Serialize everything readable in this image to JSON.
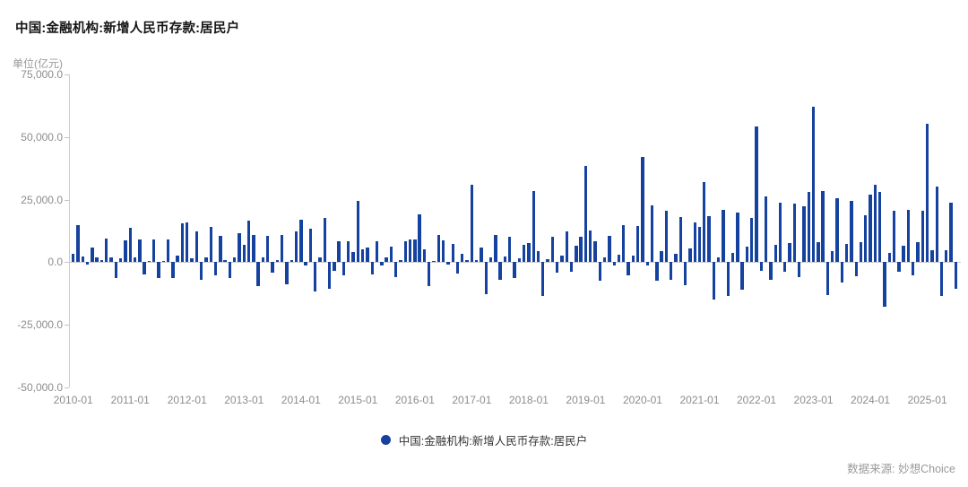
{
  "header": {
    "title": "中国:金融机构:新增人民币存款:居民户",
    "unit_label": "单位(亿元)"
  },
  "legend": {
    "label": "中国:金融机构:新增人民币存款:居民户"
  },
  "footer": {
    "source_label": "数据来源: 妙想Choice"
  },
  "chart_data": {
    "type": "bar",
    "title": "中国:金融机构:新增人民币存款:居民户",
    "unit": "亿元",
    "bar_color": "#16429f",
    "grid": false,
    "legend_position": "bottom",
    "ylim": [
      -50000,
      75000
    ],
    "y_tick_values": [
      75000,
      50000,
      25000,
      0,
      -25000,
      -50000
    ],
    "y_tick_labels": [
      "75,000.0",
      "50,000.0",
      "25,000.0",
      "0.0",
      "-25,000.0",
      "-50,000.0"
    ],
    "x_tick_labels": [
      "2010-01",
      "2011-01",
      "2012-01",
      "2013-01",
      "2014-01",
      "2015-01",
      "2016-01",
      "2017-01",
      "2018-01",
      "2019-01",
      "2020-01",
      "2021-01",
      "2022-01",
      "2023-01",
      "2024-01",
      "2025-01"
    ],
    "months": [
      "2010-01",
      "2010-02",
      "2010-03",
      "2010-04",
      "2010-05",
      "2010-06",
      "2010-07",
      "2010-08",
      "2010-09",
      "2010-10",
      "2010-11",
      "2010-12",
      "2011-01",
      "2011-02",
      "2011-03",
      "2011-04",
      "2011-05",
      "2011-06",
      "2011-07",
      "2011-08",
      "2011-09",
      "2011-10",
      "2011-11",
      "2011-12",
      "2012-01",
      "2012-02",
      "2012-03",
      "2012-04",
      "2012-05",
      "2012-06",
      "2012-07",
      "2012-08",
      "2012-09",
      "2012-10",
      "2012-11",
      "2012-12",
      "2013-01",
      "2013-02",
      "2013-03",
      "2013-04",
      "2013-05",
      "2013-06",
      "2013-07",
      "2013-08",
      "2013-09",
      "2013-10",
      "2013-11",
      "2013-12",
      "2014-01",
      "2014-02",
      "2014-03",
      "2014-04",
      "2014-05",
      "2014-06",
      "2014-07",
      "2014-08",
      "2014-09",
      "2014-10",
      "2014-11",
      "2014-12",
      "2015-01",
      "2015-02",
      "2015-03",
      "2015-04",
      "2015-05",
      "2015-06",
      "2015-07",
      "2015-08",
      "2015-09",
      "2015-10",
      "2015-11",
      "2015-12",
      "2016-01",
      "2016-02",
      "2016-03",
      "2016-04",
      "2016-05",
      "2016-06",
      "2016-07",
      "2016-08",
      "2016-09",
      "2016-10",
      "2016-11",
      "2016-12",
      "2017-01",
      "2017-02",
      "2017-03",
      "2017-04",
      "2017-05",
      "2017-06",
      "2017-07",
      "2017-08",
      "2017-09",
      "2017-10",
      "2017-11",
      "2017-12",
      "2018-01",
      "2018-02",
      "2018-03",
      "2018-04",
      "2018-05",
      "2018-06",
      "2018-07",
      "2018-08",
      "2018-09",
      "2018-10",
      "2018-11",
      "2018-12",
      "2019-01",
      "2019-02",
      "2019-03",
      "2019-04",
      "2019-05",
      "2019-06",
      "2019-07",
      "2019-08",
      "2019-09",
      "2019-10",
      "2019-11",
      "2019-12",
      "2020-01",
      "2020-02",
      "2020-03",
      "2020-04",
      "2020-05",
      "2020-06",
      "2020-07",
      "2020-08",
      "2020-09",
      "2020-10",
      "2020-11",
      "2020-12",
      "2021-01",
      "2021-02",
      "2021-03",
      "2021-04",
      "2021-05",
      "2021-06",
      "2021-07",
      "2021-08",
      "2021-09",
      "2021-10",
      "2021-11",
      "2021-12",
      "2022-01",
      "2022-02",
      "2022-03",
      "2022-04",
      "2022-05",
      "2022-06",
      "2022-07",
      "2022-08",
      "2022-09",
      "2022-10",
      "2022-11",
      "2022-12",
      "2023-01",
      "2023-02",
      "2023-03",
      "2023-04",
      "2023-05",
      "2023-06",
      "2023-07",
      "2023-08",
      "2023-09",
      "2023-10",
      "2023-11",
      "2023-12",
      "2024-01",
      "2024-02",
      "2024-03",
      "2024-04",
      "2024-05",
      "2024-06",
      "2024-07",
      "2024-08",
      "2024-09",
      "2024-10",
      "2024-11",
      "2024-12",
      "2025-01",
      "2025-02",
      "2025-03",
      "2025-04",
      "2025-05",
      "2025-06",
      "2025-07"
    ],
    "values": [
      3200,
      14800,
      2400,
      -800,
      6000,
      1800,
      800,
      9500,
      2000,
      -6300,
      1400,
      8800,
      13600,
      1800,
      9000,
      -4900,
      300,
      9200,
      -6500,
      400,
      9200,
      -6400,
      2500,
      15400,
      16000,
      1600,
      12400,
      -7100,
      2000,
      14200,
      -5300,
      10500,
      800,
      -6500,
      1800,
      11500,
      7000,
      16600,
      11000,
      -9600,
      2000,
      10400,
      -4100,
      800,
      10900,
      -8900,
      800,
      12200,
      17100,
      -1500,
      13300,
      -11900,
      1800,
      17700,
      -10700,
      -3300,
      8500,
      -5100,
      8500,
      4000,
      24500,
      5300,
      5800,
      -4900,
      8500,
      -1300,
      1800,
      6200,
      -6000,
      800,
      8500,
      8900,
      8900,
      19200,
      5300,
      -9500,
      500,
      10700,
      8600,
      -1000,
      7100,
      -4700,
      3500,
      1000,
      30900,
      1000,
      6000,
      -12800,
      2000,
      10700,
      -7100,
      2400,
      10100,
      -6500,
      1500,
      7000,
      7600,
      28500,
      4400,
      -13400,
      1200,
      10100,
      -4300,
      2600,
      12400,
      -3700,
      6500,
      10300,
      38600,
      12700,
      8500,
      -7500,
      2000,
      10500,
      -1200,
      2800,
      14800,
      -5300,
      2500,
      14300,
      42000,
      -1500,
      22800,
      -7500,
      4400,
      20700,
      -7100,
      3400,
      18100,
      -9200,
      5600,
      15900,
      14000,
      32000,
      18400,
      -14900,
      1800,
      21000,
      -13400,
      3800,
      19800,
      -11000,
      6200,
      17800,
      54100,
      -3600,
      26300,
      -7100,
      6800,
      23900,
      -3900,
      7700,
      23300,
      -5900,
      22200,
      28100,
      62000,
      7900,
      28500,
      -13000,
      4400,
      25700,
      -8300,
      7100,
      24500,
      -5700,
      7900,
      18600,
      27000,
      31000,
      28000,
      -17800,
      3600,
      20400,
      -3900,
      6500,
      21000,
      -5300,
      7900,
      20600,
      55200,
      4700,
      30100,
      -13600,
      4700,
      23700,
      -10700
    ]
  }
}
